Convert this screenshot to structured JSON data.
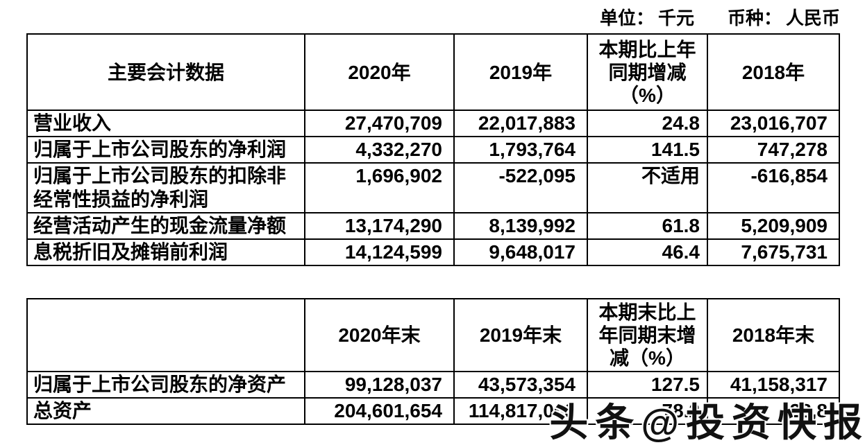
{
  "meta": {
    "unit_label": "单位：",
    "unit_value": "千元",
    "currency_label": "币种：",
    "currency_value": "人民币"
  },
  "table1": {
    "headers": [
      "主要会计数据",
      "2020年",
      "2019年",
      "本期比上年\n同期增减\n（%）",
      "2018年"
    ],
    "rows": [
      [
        "营业收入",
        "27,470,709",
        "22,017,883",
        "24.8",
        "23,016,707"
      ],
      [
        "归属于上市公司股东的净利润",
        "4,332,270",
        "1,793,764",
        "141.5",
        "747,278"
      ],
      [
        "归属于上市公司股东的扣除非经常性损益的净利润",
        "1,696,902",
        "-522,095",
        "不适用",
        "-616,854"
      ],
      [
        "经营活动产生的现金流量净额",
        "13,174,290",
        "8,139,992",
        "61.8",
        "5,209,909"
      ],
      [
        "息税折旧及摊销前利润",
        "14,124,599",
        "9,648,017",
        "46.4",
        "7,675,731"
      ]
    ]
  },
  "table2": {
    "headers": [
      "",
      "2020年末",
      "2019年末",
      "本期末比上\n年同期末增\n减（%）",
      "2018年末"
    ],
    "rows": [
      [
        "归属于上市公司股东的净资产",
        "99,128,037",
        "43,573,354",
        "127.5",
        "41,158,317"
      ],
      [
        "总资产",
        "204,601,654",
        "114,817,063",
        "78.2",
        "28,8"
      ]
    ]
  },
  "watermark": "头条@投资快报"
}
